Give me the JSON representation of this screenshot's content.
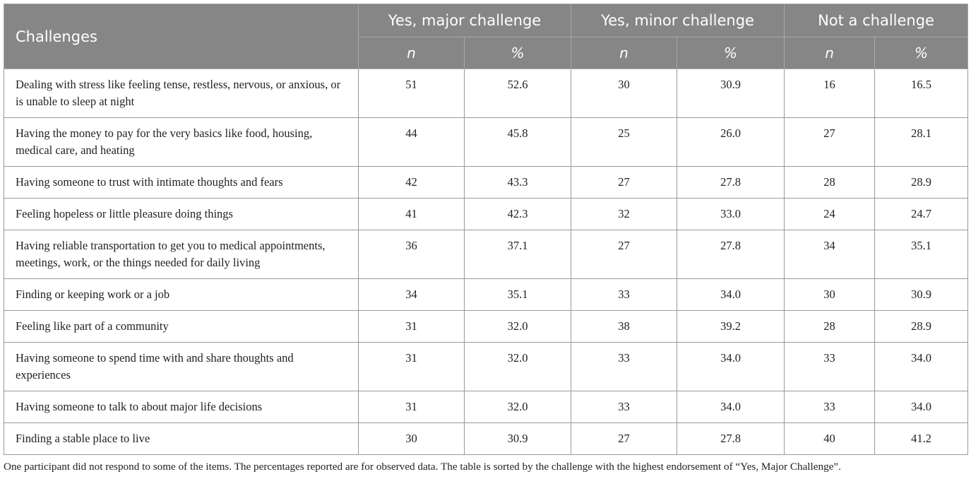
{
  "table": {
    "columns": [
      "Challenges",
      "Yes, major challenge",
      "Yes, minor challenge",
      "Not a challenge"
    ],
    "subheaders": [
      "n",
      "%",
      "n",
      "%",
      "n",
      "%"
    ],
    "rows": [
      [
        "Dealing with stress like feeling tense, restless, nervous, or anxious, or is unable to sleep at night",
        "51",
        "52.6",
        "30",
        "30.9",
        "16",
        "16.5"
      ],
      [
        "Having the money to pay for the very basics like food, housing, medical care, and heating",
        "44",
        "45.8",
        "25",
        "26.0",
        "27",
        "28.1"
      ],
      [
        "Having someone to trust with intimate thoughts and fears",
        "42",
        "43.3",
        "27",
        "27.8",
        "28",
        "28.9"
      ],
      [
        "Feeling hopeless or little pleasure doing things",
        "41",
        "42.3",
        "32",
        "33.0",
        "24",
        "24.7"
      ],
      [
        "Having reliable transportation to get you to medical appointments, meetings, work, or the things needed for daily living",
        "36",
        "37.1",
        "27",
        "27.8",
        "34",
        "35.1"
      ],
      [
        "Finding or keeping work or a job",
        "34",
        "35.1",
        "33",
        "34.0",
        "30",
        "30.9"
      ],
      [
        "Feeling like part of a community",
        "31",
        "32.0",
        "38",
        "39.2",
        "28",
        "28.9"
      ],
      [
        "Having someone to spend time with and share thoughts and experiences",
        "31",
        "32.0",
        "33",
        "34.0",
        "33",
        "34.0"
      ],
      [
        "Having someone to talk to about major life decisions",
        "31",
        "32.0",
        "33",
        "34.0",
        "33",
        "34.0"
      ],
      [
        "Finding a stable place to live",
        "30",
        "30.9",
        "27",
        "27.8",
        "40",
        "41.2"
      ]
    ]
  },
  "footnote": "One participant did not respond to some of the items. The percentages reported are for observed data. The table is sorted by the challenge with the highest endorsement of “Yes, Major Challenge”."
}
